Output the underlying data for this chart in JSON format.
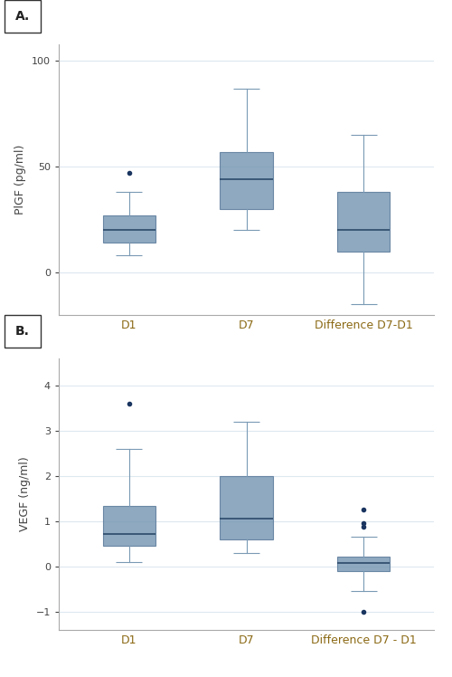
{
  "panel_A": {
    "label": "A.",
    "ylabel": "PlGF (pg/ml)",
    "ylim": [
      -20,
      108
    ],
    "yticks": [
      0,
      50,
      100
    ],
    "categories": [
      "D1",
      "D7",
      "Difference D7-D1"
    ],
    "box_stats": [
      {
        "med": 20,
        "q1": 14,
        "q3": 27,
        "whislo": 8,
        "whishi": 38,
        "fliers": [
          47
        ]
      },
      {
        "med": 44,
        "q1": 30,
        "q3": 57,
        "whislo": 20,
        "whishi": 87,
        "fliers": []
      },
      {
        "med": 20,
        "q1": 10,
        "q3": 38,
        "whislo": -15,
        "whishi": 65,
        "fliers": []
      }
    ]
  },
  "panel_B": {
    "label": "B.",
    "ylabel": "VEGF (ng/ml)",
    "ylim": [
      -1.4,
      4.6
    ],
    "yticks": [
      -1,
      0,
      1,
      2,
      3,
      4
    ],
    "categories": [
      "D1",
      "D7",
      "Difference D7 - D1"
    ],
    "box_stats": [
      {
        "med": 0.72,
        "q1": 0.45,
        "q3": 1.35,
        "whislo": 0.1,
        "whishi": 2.6,
        "fliers": [
          3.6
        ]
      },
      {
        "med": 1.05,
        "q1": 0.6,
        "q3": 2.0,
        "whislo": 0.3,
        "whishi": 3.2,
        "fliers": []
      },
      {
        "med": 0.08,
        "q1": -0.1,
        "q3": 0.22,
        "whislo": -0.55,
        "whishi": 0.65,
        "fliers": [
          1.25,
          0.95,
          0.88,
          -1.0
        ]
      }
    ]
  },
  "box_color": "#7a9ab5",
  "box_edge_color": "#5a7a9a",
  "median_color": "#2c4a6a",
  "whisker_color": "#7a9ab5",
  "flier_color": "#1a3560",
  "label_fontsize": 9,
  "tick_fontsize": 8,
  "ylabel_fontsize": 9,
  "panel_label_fontsize": 10,
  "xtick_color": "#8B6914",
  "background_color": "#ffffff",
  "grid_color": "#dde8f0"
}
